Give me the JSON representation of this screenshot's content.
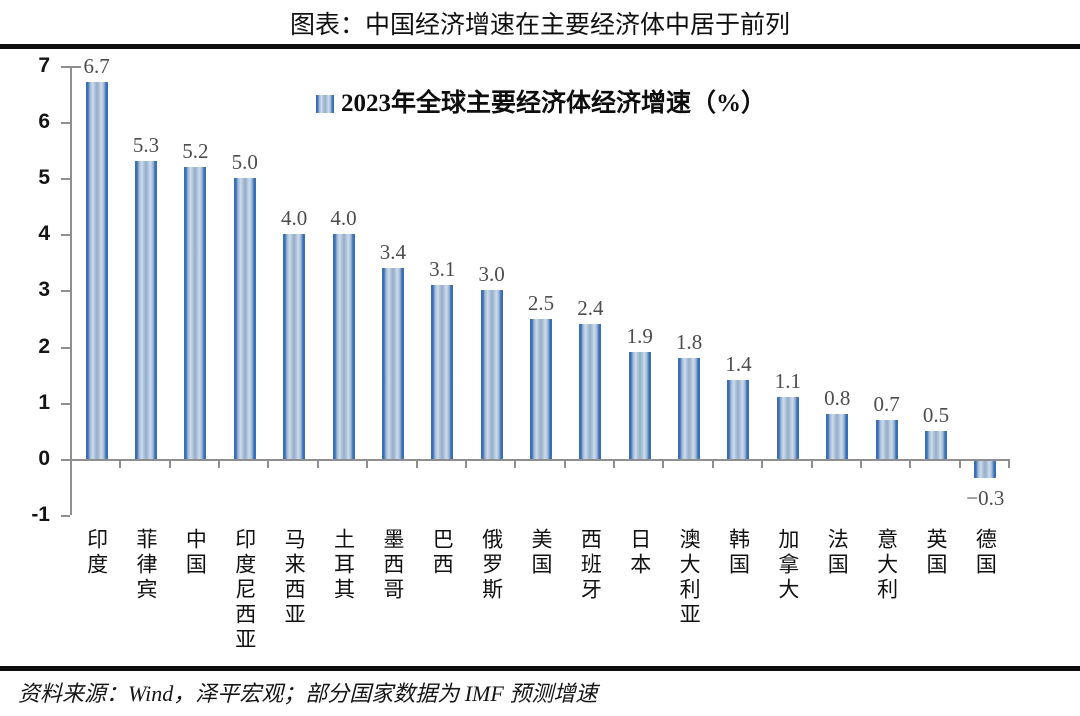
{
  "header": {
    "title": "图表：中国经济增速在主要经济体中居于前列"
  },
  "footer": {
    "source": "资料来源：Wind，泽平宏观；部分国家数据为 IMF 预测增速"
  },
  "chart_data": {
    "type": "bar",
    "title": "图表：中国经济增速在主要经济体中居于前列",
    "legend": "2023年全球主要经济体经济增速（%）",
    "legend_position": "top-center-inside",
    "grid": false,
    "categories": [
      "印度",
      "菲律宾",
      "中国",
      "印度尼西亚",
      "马来西亚",
      "土耳其",
      "墨西哥",
      "巴西",
      "俄罗斯",
      "美国",
      "西班牙",
      "日本",
      "澳大利亚",
      "韩国",
      "加拿大",
      "法国",
      "意大利",
      "英国",
      "德国"
    ],
    "values": [
      6.7,
      5.3,
      5.2,
      5.0,
      4.0,
      4.0,
      3.4,
      3.1,
      3.0,
      2.5,
      2.4,
      1.9,
      1.8,
      1.4,
      1.1,
      0.8,
      0.7,
      0.5,
      -0.3
    ],
    "value_labels": [
      "6.7",
      "5.3",
      "5.2",
      "5.0",
      "4.0",
      "4.0",
      "3.4",
      "3.1",
      "3.0",
      "2.5",
      "2.4",
      "1.9",
      "1.8",
      "1.4",
      "1.1",
      "0.8",
      "0.7",
      "0.5",
      "−0.3"
    ],
    "xlabel": "",
    "ylabel": "",
    "ylim": [
      -1,
      7
    ],
    "yticks": [
      7,
      6,
      5,
      4,
      3,
      2,
      1,
      0,
      -1
    ],
    "colors": {
      "bar_edge": "#3a6fb7",
      "bar_soft": "#9bb6d4",
      "bar_light": "#cedceb",
      "bar_mid": "#93acc8",
      "axis": "#8f8f8f",
      "value_label": "#4d4d4d"
    }
  }
}
